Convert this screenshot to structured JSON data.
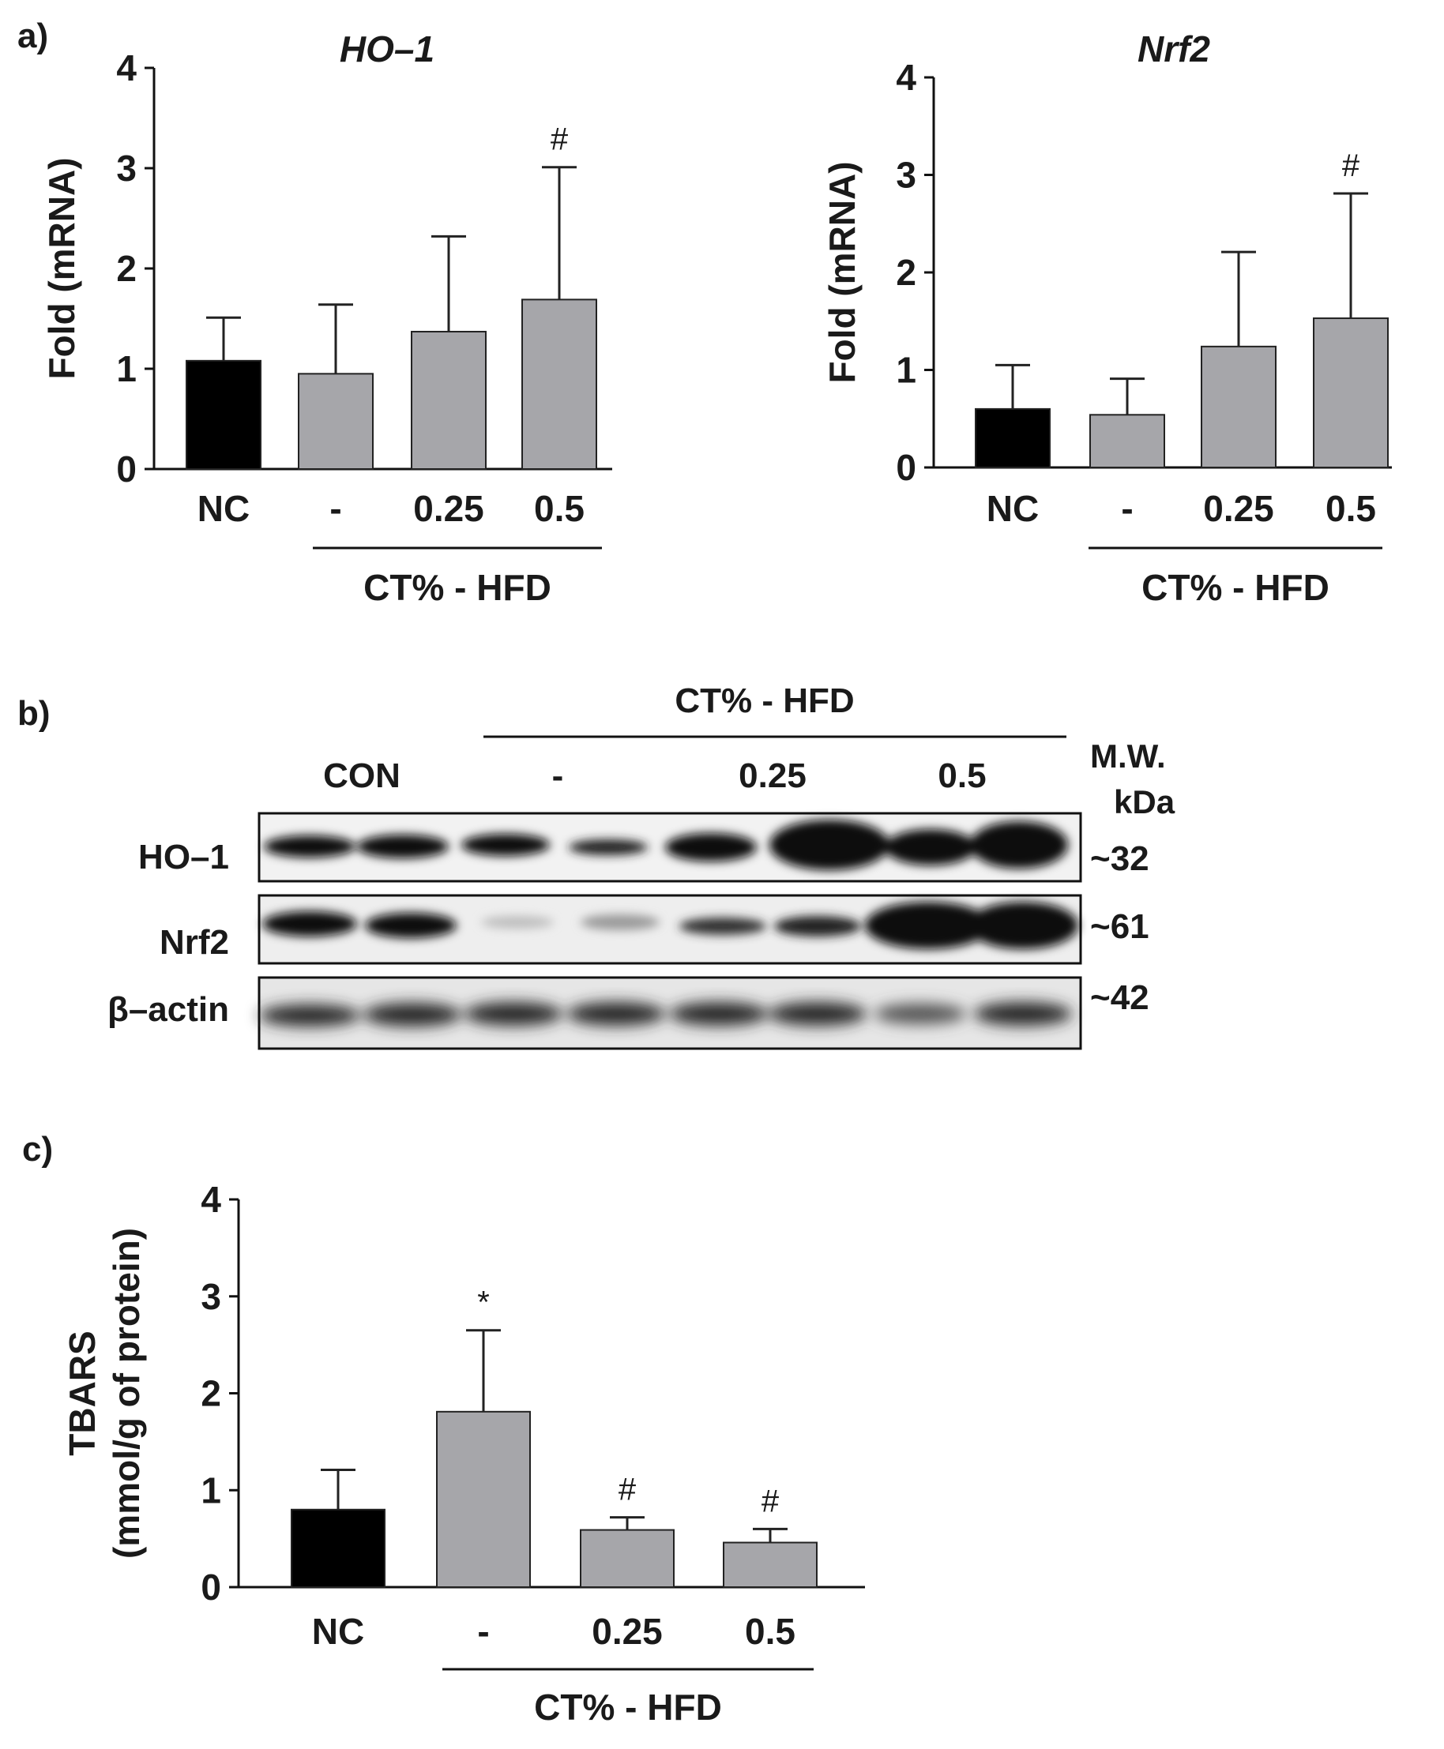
{
  "panels": {
    "a": "a)",
    "b": "b)",
    "c": "c)"
  },
  "colors": {
    "nc_bar": "#000000",
    "treated_bar": "#a6a6aa",
    "axis": "#111111"
  },
  "chart_data": [
    {
      "type": "bar",
      "panel": "a",
      "title": "HO–1",
      "ylabel": "Fold (mRNA)",
      "ylim": [
        0,
        4
      ],
      "yticks": [
        "0",
        "1",
        "2",
        "3",
        "4"
      ],
      "categories": [
        "NC",
        "-",
        "0.25",
        "0.5"
      ],
      "values": [
        1.08,
        0.95,
        1.37,
        1.69
      ],
      "errors": [
        0.43,
        0.69,
        0.95,
        1.32
      ],
      "markers": [
        "",
        "",
        "",
        "#"
      ],
      "group_label": "CT% - HFD"
    },
    {
      "type": "bar",
      "panel": "a",
      "title": "Nrf2",
      "ylabel": "Fold (mRNA)",
      "ylim": [
        0,
        4
      ],
      "yticks": [
        "0",
        "1",
        "2",
        "3",
        "4"
      ],
      "categories": [
        "NC",
        "-",
        "0.25",
        "0.5"
      ],
      "values": [
        0.6,
        0.54,
        1.24,
        1.53
      ],
      "errors": [
        0.45,
        0.37,
        0.97,
        1.28
      ],
      "markers": [
        "",
        "",
        "",
        "#"
      ],
      "group_label": "CT% - HFD"
    },
    {
      "type": "bar",
      "panel": "c",
      "title": "",
      "ylabel_line1": "TBARS",
      "ylabel_line2": "(mmol/g of protein)",
      "ylim": [
        0,
        4
      ],
      "yticks": [
        "0",
        "1",
        "2",
        "3",
        "4"
      ],
      "categories": [
        "NC",
        "-",
        "0.25",
        "0.5"
      ],
      "values": [
        0.8,
        1.81,
        0.59,
        0.46
      ],
      "errors": [
        0.41,
        0.84,
        0.13,
        0.14
      ],
      "markers": [
        "",
        "*",
        "#",
        "#"
      ],
      "group_label": "CT% - HFD"
    }
  ],
  "blot": {
    "header": "CT% - HFD",
    "lanes": [
      "CON",
      "-",
      "0.25",
      "0.5"
    ],
    "mw_label_line1": "M.W.",
    "mw_label_line2": "kDa",
    "rows": [
      {
        "name": "HO–1",
        "mw": "~32"
      },
      {
        "name": "Nrf2",
        "mw": "~61"
      },
      {
        "name": "β–actin",
        "mw": "~42"
      }
    ]
  }
}
